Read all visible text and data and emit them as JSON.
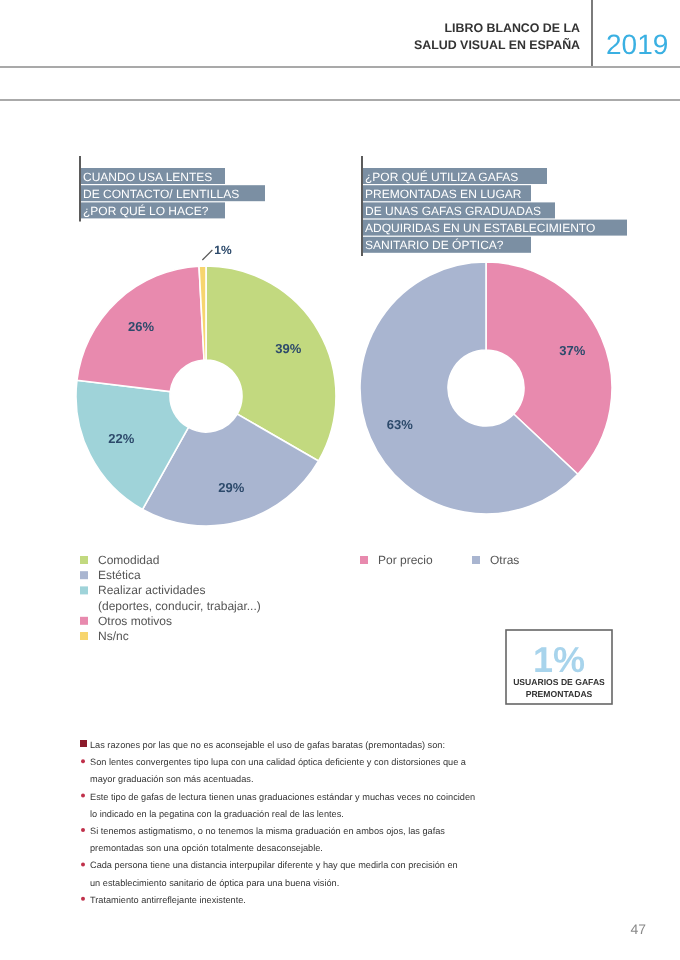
{
  "chart_data": [
    {
      "type": "donut",
      "title": "CUANDO USA LENTES\nDE CONTACTO/ LENTILLAS\n¿POR QUÉ LO HACE?",
      "categories": [
        "Comodidad",
        "Estética",
        "Realizar actividades\n(deportes, conducir, trabajar...)",
        "Otros motivos",
        "Ns/nc"
      ],
      "values": [
        39,
        29,
        22,
        26,
        1
      ],
      "value_labels": [
        "39%",
        "29%",
        "22%",
        "26%",
        "1%"
      ],
      "colors": [
        "#c2d97f",
        "#a9b5d0",
        "#9fd3d9",
        "#e88aae",
        "#f7d56e"
      ],
      "legend": "bottom left"
    },
    {
      "type": "donut",
      "title": "¿POR QUÉ UTILIZA GAFAS\nPREMONTADAS EN LUGAR\nDE UNAS GAFAS GRADUADAS\nADQUIRIDAS EN UN ESTABLECIMIENTO\nSANITARIO DE ÓPTICA?",
      "categories": [
        "Por precio",
        "Otras"
      ],
      "values": [
        37,
        63
      ],
      "value_labels": [
        "37%",
        "63%"
      ],
      "colors": [
        "#e88aae",
        "#a9b5d0"
      ],
      "legend": "bottom"
    },
    {
      "type": "other",
      "title": "LIBRO BLANCO DE LA\nSALUD VISUAL EN ESPAÑA",
      "subtitle": "2019",
      "annotations": [
        "1%",
        "USUARIOS DE GAFAS\nPREMONTADAS",
        "Las razones por las que no es aconsejable el uso de gafas baratas (premontadas) son:",
        "Son lentes convergentes tipo lupa con una calidad óptica deficiente y con distorsiones que a mayor graduación son más acentuadas.",
        "Este tipo de gafas de lectura tienen unas graduaciones estándar y muchas veces no coinciden lo indicado en la pegatina con la graduación real de las lentes.",
        "Si tenemos astigmatismo, o no tenemos la misma graduación en ambos ojos, las gafas premontadas son una opción totalmente desaconsejable.",
        "Cada persona tiene una distancia interpupilar diferente y hay que medirla con precisión en un establecimiento sanitario de óptica para una buena visión.",
        "Tratamiento antirreflejante inexistente.",
        "47"
      ]
    }
  ]
}
